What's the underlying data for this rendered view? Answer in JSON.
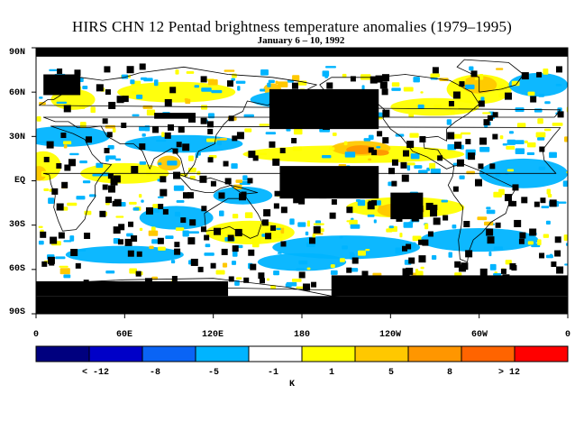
{
  "title": "HIRS CHN 12 Pentad brightness temperature anomalies (1979–1995)",
  "subtitle": "January 6 – 10, 1992",
  "y_labels": [
    "90N",
    "60N",
    "30N",
    "EQ",
    "30S",
    "60S",
    "90S"
  ],
  "x_labels": [
    "0",
    "60E",
    "120E",
    "180",
    "120W",
    "60W",
    "0"
  ],
  "colorbar": {
    "colors": [
      "#00007f",
      "#0000c8",
      "#0a64f5",
      "#00b4ff",
      "#ffffff",
      "#ffff00",
      "#ffc800",
      "#ff9600",
      "#ff6400",
      "#ff0000"
    ],
    "labels": [
      "< -12",
      "-8",
      "-5",
      "-1",
      "1",
      "5",
      "8",
      "> 12"
    ],
    "unit": "K"
  },
  "colors": {
    "missing": "#000000",
    "cold": "#00b4ff",
    "warm": "#ffff00",
    "warm2": "#ffc800",
    "warm3": "#ff9600",
    "coast": "#000000"
  }
}
